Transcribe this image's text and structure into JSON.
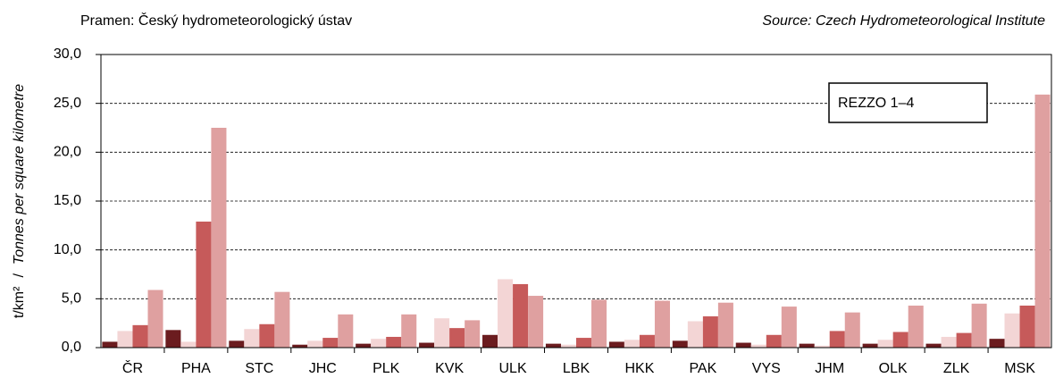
{
  "chart_data": {
    "type": "bar",
    "source_cz": "Pramen: Český hydrometeorologický ústav",
    "source_en": "Source: Czech Hydrometeorological Institute",
    "y_label": {
      "unit": "t/km²",
      "separator": "/",
      "text": "Tonnes per square kilometre"
    },
    "annotation": "REZZO 1–4",
    "categories": [
      "ČR",
      "PHA",
      "STC",
      "JHC",
      "PLK",
      "KVK",
      "ULK",
      "LBK",
      "HKK",
      "PAK",
      "VYS",
      "JHM",
      "OLK",
      "ZLK",
      "MSK"
    ],
    "series": [
      {
        "color": "#6b1c1f",
        "values": [
          0.6,
          1.8,
          0.7,
          0.3,
          0.4,
          0.5,
          1.3,
          0.4,
          0.6,
          0.7,
          0.5,
          0.4,
          0.4,
          0.4,
          0.9
        ]
      },
      {
        "color": "#f3d5d5",
        "values": [
          1.7,
          0.6,
          1.9,
          0.7,
          0.9,
          3.0,
          7.0,
          0.3,
          0.8,
          2.7,
          0.3,
          0.2,
          0.8,
          1.1,
          3.5
        ]
      },
      {
        "color": "#c65a5a",
        "values": [
          2.3,
          12.9,
          2.4,
          1.0,
          1.1,
          2.0,
          6.5,
          1.0,
          1.3,
          3.2,
          1.3,
          1.7,
          1.6,
          1.5,
          4.3
        ]
      },
      {
        "color": "#dfa0a0",
        "values": [
          5.9,
          22.5,
          5.7,
          3.4,
          3.4,
          2.8,
          5.3,
          4.9,
          4.8,
          4.6,
          4.2,
          3.6,
          4.3,
          4.5,
          25.9
        ]
      }
    ],
    "ylim": [
      0,
      30
    ],
    "yticks": [
      {
        "value": 0,
        "label": "0,0"
      },
      {
        "value": 5,
        "label": "5,0"
      },
      {
        "value": 10,
        "label": "10,0"
      },
      {
        "value": 15,
        "label": "15,0"
      },
      {
        "value": 20,
        "label": "20,0"
      },
      {
        "value": 25,
        "label": "25,0"
      },
      {
        "value": 30,
        "label": "30,0"
      }
    ],
    "grid": true
  }
}
